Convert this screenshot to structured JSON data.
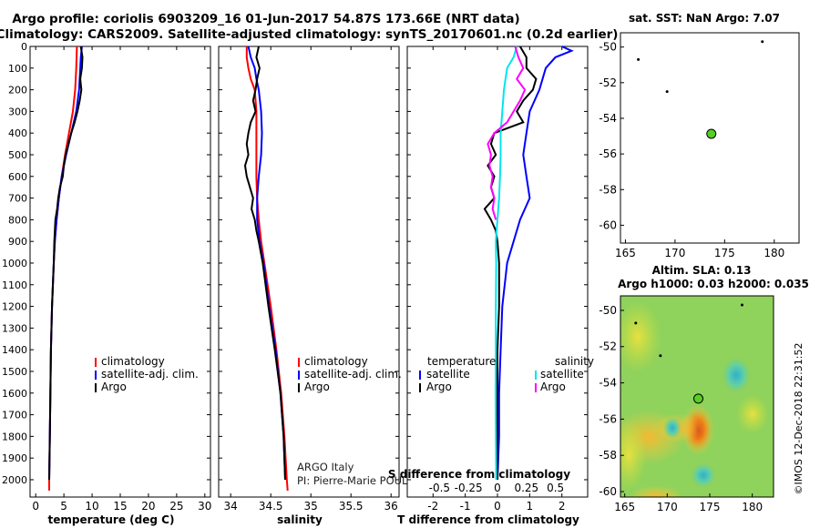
{
  "title_line1": "Argo profile: coriolis 6903209_16 01-Jun-2017 54.87S 173.66E (NRT data)",
  "title_line2": "Climatology: CARS2009. Satellite-adjusted climatology: synTS_20170601.nc (0.2d earlier)",
  "side_stamp": "©IMOS 12-Dec-2018 22:31:52",
  "credit_line1": "ARGO Italy",
  "credit_line2": "PI: Pierre-Marie POULAIN",
  "colors": {
    "climatology": "#ff0000",
    "satellite": "#0000ff",
    "argo": "#000000",
    "sal_satellite": "#00e5ee",
    "sal_argo": "#ff00ff",
    "float": "#55d020"
  },
  "chart_data": [
    {
      "id": "temperature",
      "type": "line",
      "xlabel": "temperature (deg C)",
      "ylabel": "",
      "xlim": [
        -1,
        31
      ],
      "ylim": [
        2080,
        0
      ],
      "xticks": [
        0,
        5,
        10,
        15,
        20,
        25,
        30
      ],
      "xticklabels": [
        "0",
        "5",
        "10",
        "15",
        "20",
        "25",
        "30"
      ],
      "yticks": [
        0,
        100,
        200,
        300,
        400,
        500,
        600,
        700,
        800,
        900,
        1000,
        1100,
        1200,
        1300,
        1400,
        1500,
        1600,
        1700,
        1800,
        1900,
        2000
      ],
      "yticklabels": [
        "0",
        "100",
        "200",
        "300",
        "400",
        "500",
        "600",
        "700",
        "800",
        "900",
        "1000",
        "1100",
        "1200",
        "1300",
        "1400",
        "1500",
        "1600",
        "1700",
        "1800",
        "1900",
        "2000"
      ],
      "legend": [
        "climatology",
        "satellite-adj. clim.",
        "Argo"
      ],
      "series": [
        {
          "name": "climatology",
          "color": "#ff0000",
          "depth": [
            0,
            100,
            200,
            300,
            400,
            500,
            600,
            700,
            800,
            900,
            1000,
            1200,
            1400,
            1600,
            1800,
            2000,
            2050
          ],
          "values": [
            7.3,
            7.2,
            7.0,
            6.6,
            5.9,
            5.2,
            4.6,
            4.1,
            3.7,
            3.4,
            3.2,
            2.9,
            2.7,
            2.6,
            2.5,
            2.4,
            2.4
          ]
        },
        {
          "name": "satellite-adj. clim.",
          "color": "#0000ff",
          "depth": [
            0,
            50,
            100,
            200,
            300,
            400,
            500,
            600,
            700,
            800,
            900,
            1000,
            1200,
            1400,
            1600,
            1800,
            2000
          ],
          "values": [
            8.2,
            8.0,
            7.9,
            7.7,
            7.2,
            6.3,
            5.4,
            4.6,
            4.1,
            3.7,
            3.4,
            3.2,
            2.9,
            2.7,
            2.6,
            2.5,
            2.4
          ]
        },
        {
          "name": "Argo",
          "color": "#000000",
          "depth": [
            0,
            50,
            100,
            150,
            200,
            250,
            300,
            350,
            400,
            450,
            500,
            550,
            600,
            650,
            700,
            750,
            800,
            850,
            900,
            1000,
            1200,
            1400,
            1600,
            1800,
            2000
          ],
          "values": [
            8.0,
            8.3,
            8.2,
            7.9,
            8.1,
            7.8,
            7.4,
            6.9,
            6.3,
            5.8,
            5.3,
            5.0,
            4.8,
            4.3,
            4.0,
            3.8,
            3.5,
            3.4,
            3.3,
            3.2,
            2.9,
            2.7,
            2.6,
            2.5,
            2.4
          ]
        }
      ]
    },
    {
      "id": "salinity",
      "type": "line",
      "xlabel": "salinity",
      "ylabel": "",
      "xlim": [
        33.85,
        36.1
      ],
      "ylim": [
        2080,
        0
      ],
      "xticks": [
        34,
        34.5,
        35,
        35.5,
        36
      ],
      "xticklabels": [
        "34",
        "34.5",
        "35",
        "35.5",
        "36"
      ],
      "legend": [
        "climatology",
        "satellite-adj. clim.",
        "Argo"
      ],
      "series": [
        {
          "name": "climatology",
          "color": "#ff0000",
          "depth": [
            0,
            50,
            100,
            150,
            200,
            300,
            400,
            500,
            600,
            700,
            800,
            900,
            1000,
            1200,
            1400,
            1600,
            1800,
            2000,
            2050
          ],
          "values": [
            34.2,
            34.2,
            34.22,
            34.25,
            34.3,
            34.32,
            34.32,
            34.32,
            34.32,
            34.33,
            34.35,
            34.38,
            34.42,
            34.5,
            34.57,
            34.63,
            34.67,
            34.7,
            34.71
          ]
        },
        {
          "name": "satellite-adj. clim.",
          "color": "#0000ff",
          "depth": [
            0,
            50,
            100,
            150,
            200,
            300,
            400,
            500,
            600,
            700,
            800,
            900,
            1000,
            1200,
            1400,
            1600,
            1800,
            2000
          ],
          "values": [
            34.22,
            34.25,
            34.3,
            34.32,
            34.35,
            34.38,
            34.39,
            34.38,
            34.35,
            34.33,
            34.33,
            34.36,
            34.41,
            34.48,
            34.56,
            34.62,
            34.66,
            34.68
          ]
        },
        {
          "name": "Argo",
          "color": "#000000",
          "depth": [
            0,
            50,
            100,
            150,
            200,
            250,
            300,
            350,
            400,
            450,
            500,
            550,
            600,
            650,
            700,
            750,
            800,
            850,
            900,
            1000,
            1200,
            1400,
            1600,
            1800,
            2000
          ],
          "values": [
            34.35,
            34.32,
            34.36,
            34.33,
            34.31,
            34.28,
            34.31,
            34.25,
            34.22,
            34.2,
            34.22,
            34.18,
            34.2,
            34.24,
            34.28,
            34.26,
            34.3,
            34.32,
            34.35,
            34.4,
            34.47,
            34.55,
            34.62,
            34.66,
            34.68
          ]
        }
      ]
    },
    {
      "id": "difference",
      "type": "line",
      "xlabel": "T difference from climatology",
      "xlabel_top": "S difference from climatology",
      "ylabel": "",
      "xlim": [
        -2.8,
        2.8
      ],
      "ylim": [
        2080,
        0
      ],
      "xticks": [
        -2,
        -1,
        0,
        1,
        2
      ],
      "xticklabels": [
        "-2",
        "-1",
        "0",
        "1",
        "2"
      ],
      "sticks_labels": [
        "-0.5",
        "-0.25",
        "0",
        "0.25",
        "0.5"
      ],
      "legend_left_title": "temperature",
      "legend_right_title": "salinity",
      "legend_left": [
        "satellite",
        "Argo"
      ],
      "legend_right": [
        "satellite",
        "Argo"
      ],
      "series": [
        {
          "name": "T satellite",
          "color": "#0000ff",
          "depth": [
            0,
            20,
            50,
            100,
            200,
            300,
            400,
            500,
            600,
            700,
            800,
            900,
            1000,
            1200,
            1400,
            1600,
            1800,
            2000
          ],
          "values": [
            2.0,
            2.3,
            1.8,
            1.5,
            1.3,
            1.0,
            0.9,
            0.8,
            0.9,
            1.0,
            0.7,
            0.5,
            0.3,
            0.15,
            0.1,
            0.05,
            0.05,
            0.0
          ]
        },
        {
          "name": "T Argo",
          "color": "#000000",
          "depth": [
            0,
            50,
            100,
            150,
            200,
            250,
            300,
            350,
            400,
            450,
            500,
            550,
            600,
            650,
            700,
            750,
            800,
            850,
            900,
            1000,
            1200,
            1400,
            1600,
            1800,
            2000
          ],
          "values": [
            0.7,
            0.9,
            0.9,
            1.2,
            1.1,
            0.8,
            0.6,
            0.8,
            -0.1,
            -0.2,
            -0.05,
            -0.3,
            -0.1,
            -0.2,
            -0.1,
            -0.4,
            -0.2,
            -0.05,
            0.0,
            0.05,
            0.05,
            0.0,
            0.0,
            0.0,
            0.0
          ]
        },
        {
          "name": "S satellite",
          "color": "#00e5ee",
          "depth": [
            0,
            50,
            100,
            200,
            300,
            400,
            500,
            600,
            700,
            800,
            900,
            1000,
            1200,
            1400,
            1600,
            1800,
            2000
          ],
          "values": [
            0.6,
            0.5,
            0.3,
            0.2,
            0.15,
            0.1,
            0.1,
            0.08,
            0.05,
            0.0,
            -0.05,
            -0.04,
            -0.05,
            -0.05,
            -0.06,
            -0.05,
            -0.04
          ]
        },
        {
          "name": "S Argo",
          "color": "#ff00ff",
          "depth": [
            0,
            50,
            100,
            150,
            200,
            250,
            300,
            350,
            400,
            450,
            500,
            550,
            600,
            650,
            700,
            750,
            800
          ],
          "values": [
            0.55,
            0.65,
            0.8,
            0.6,
            0.85,
            0.7,
            0.5,
            0.3,
            -0.1,
            -0.3,
            -0.2,
            -0.25,
            -0.15,
            -0.2,
            -0.1,
            -0.15,
            -0.05
          ]
        }
      ]
    },
    {
      "id": "sst_map",
      "type": "scatter",
      "title": "sat. SST: NaN Argo: 7.07",
      "xlim": [
        164.5,
        182.5
      ],
      "ylim": [
        -61,
        -49.2
      ],
      "xticks": [
        165,
        170,
        175,
        180
      ],
      "xticklabels": [
        "165",
        "170",
        "175",
        "180"
      ],
      "yticks": [
        -50,
        -52,
        -54,
        -56,
        -58,
        -60
      ],
      "yticklabels": [
        "-50",
        "-52",
        "-54",
        "-56",
        "-58",
        "-60"
      ],
      "points": [
        {
          "lon": 166.3,
          "lat": -50.7,
          "kind": "island"
        },
        {
          "lon": 169.2,
          "lat": -52.5,
          "kind": "island"
        },
        {
          "lon": 178.8,
          "lat": -49.7,
          "kind": "island"
        },
        {
          "lon": 173.66,
          "lat": -54.87,
          "kind": "float"
        }
      ]
    },
    {
      "id": "sla_map",
      "type": "heatmap",
      "title": "Altim. SLA: 0.13",
      "subtitle": "Argo h1000: 0.03 h2000: 0.035",
      "xlim": [
        164.5,
        182.5
      ],
      "ylim": [
        -60.3,
        -49.2
      ],
      "xticks": [
        165,
        170,
        175,
        180
      ],
      "xticklabels": [
        "165",
        "170",
        "175",
        "180"
      ],
      "yticks": [
        -50,
        -52,
        -54,
        -56,
        -58,
        -60
      ],
      "yticklabels": [
        "-50",
        "-52",
        "-54",
        "-56",
        "-58",
        "-60"
      ],
      "float": {
        "lon": 173.66,
        "lat": -54.87
      }
    }
  ]
}
